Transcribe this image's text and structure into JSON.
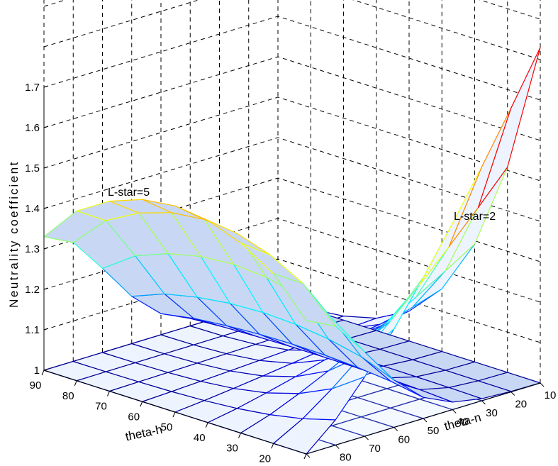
{
  "chart_data": {
    "type": "surface",
    "title": "",
    "xlabel": "theta-n",
    "ylabel": "theta-h",
    "zlabel": "Neutrality coefficient",
    "theta_n_ticks": [
      10,
      20,
      30,
      40,
      50,
      60,
      70,
      80,
      90
    ],
    "theta_h_ticks": [
      10,
      20,
      30,
      40,
      50,
      60,
      70,
      80,
      90
    ],
    "z_ticks": [
      "1",
      "1.1",
      "1.2",
      "1.3",
      "1.4",
      "1.5",
      "1.6",
      "1.7"
    ],
    "zlim": [
      1,
      1.7
    ],
    "grid": true,
    "colormap": "jet",
    "surface_fill": "#c8d8f4",
    "surfaces": [
      {
        "label": "L-star=5",
        "description": "dome in theta-h, peak near theta-h=50",
        "theta_h": [
          90,
          80,
          70,
          60,
          50,
          40,
          30,
          20,
          10
        ],
        "z_at_theta_n_90": [
          1.33,
          1.42,
          1.47,
          1.5,
          1.51,
          1.5,
          1.47,
          1.42,
          1.33
        ],
        "z_at_theta_n_10": [
          1.0,
          1.0,
          1.0,
          1.0,
          1.0,
          1.0,
          1.0,
          1.0,
          1.0
        ]
      },
      {
        "label": "L-star=2",
        "description": "rises steeply toward theta-h=10, theta-n=10",
        "peak_value": 1.71
      }
    ]
  },
  "annotations": {
    "lstar5": "L-star=5",
    "lstar2": "L-star=2"
  }
}
